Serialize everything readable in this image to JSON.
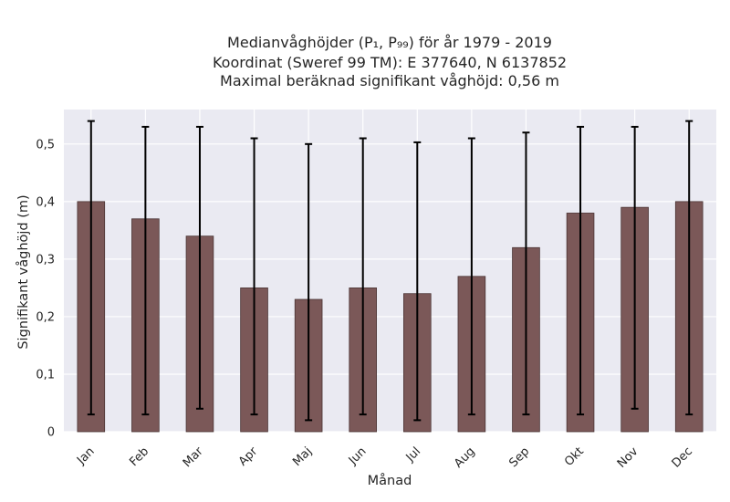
{
  "chart_data": {
    "type": "bar",
    "title_lines": [
      "Medianvåghöjder (P₁, P₉₉) för år 1979 - 2019",
      "Koordinat (Sweref 99 TM): E 377640, N 6137852",
      "Maximal beräknad signifikant våghöjd: 0,56 m"
    ],
    "xlabel": "Månad",
    "ylabel": "Signifikant våghöjd (m)",
    "categories": [
      "Jan",
      "Feb",
      "Mar",
      "Apr",
      "Maj",
      "Jun",
      "Jul",
      "Aug",
      "Sep",
      "Okt",
      "Nov",
      "Dec"
    ],
    "values": [
      0.4,
      0.37,
      0.34,
      0.25,
      0.23,
      0.25,
      0.24,
      0.27,
      0.32,
      0.38,
      0.39,
      0.4
    ],
    "error_low": [
      0.03,
      0.03,
      0.04,
      0.03,
      0.02,
      0.03,
      0.02,
      0.03,
      0.03,
      0.03,
      0.04,
      0.03
    ],
    "error_high": [
      0.54,
      0.53,
      0.53,
      0.51,
      0.5,
      0.51,
      0.503,
      0.51,
      0.52,
      0.53,
      0.53,
      0.54
    ],
    "ylim": [
      0,
      0.56
    ],
    "yticks": [
      0,
      0.1,
      0.2,
      0.3,
      0.4,
      0.5
    ],
    "ytick_labels": [
      "0",
      "0,1",
      "0,2",
      "0,3",
      "0,4",
      "0,5"
    ],
    "grid": true,
    "colors": {
      "bar": "#7b5858",
      "bar_edge": "#4a3434",
      "plot_bg": "#eaeaf2",
      "grid": "#ffffff",
      "error_bar": "#000000"
    }
  }
}
